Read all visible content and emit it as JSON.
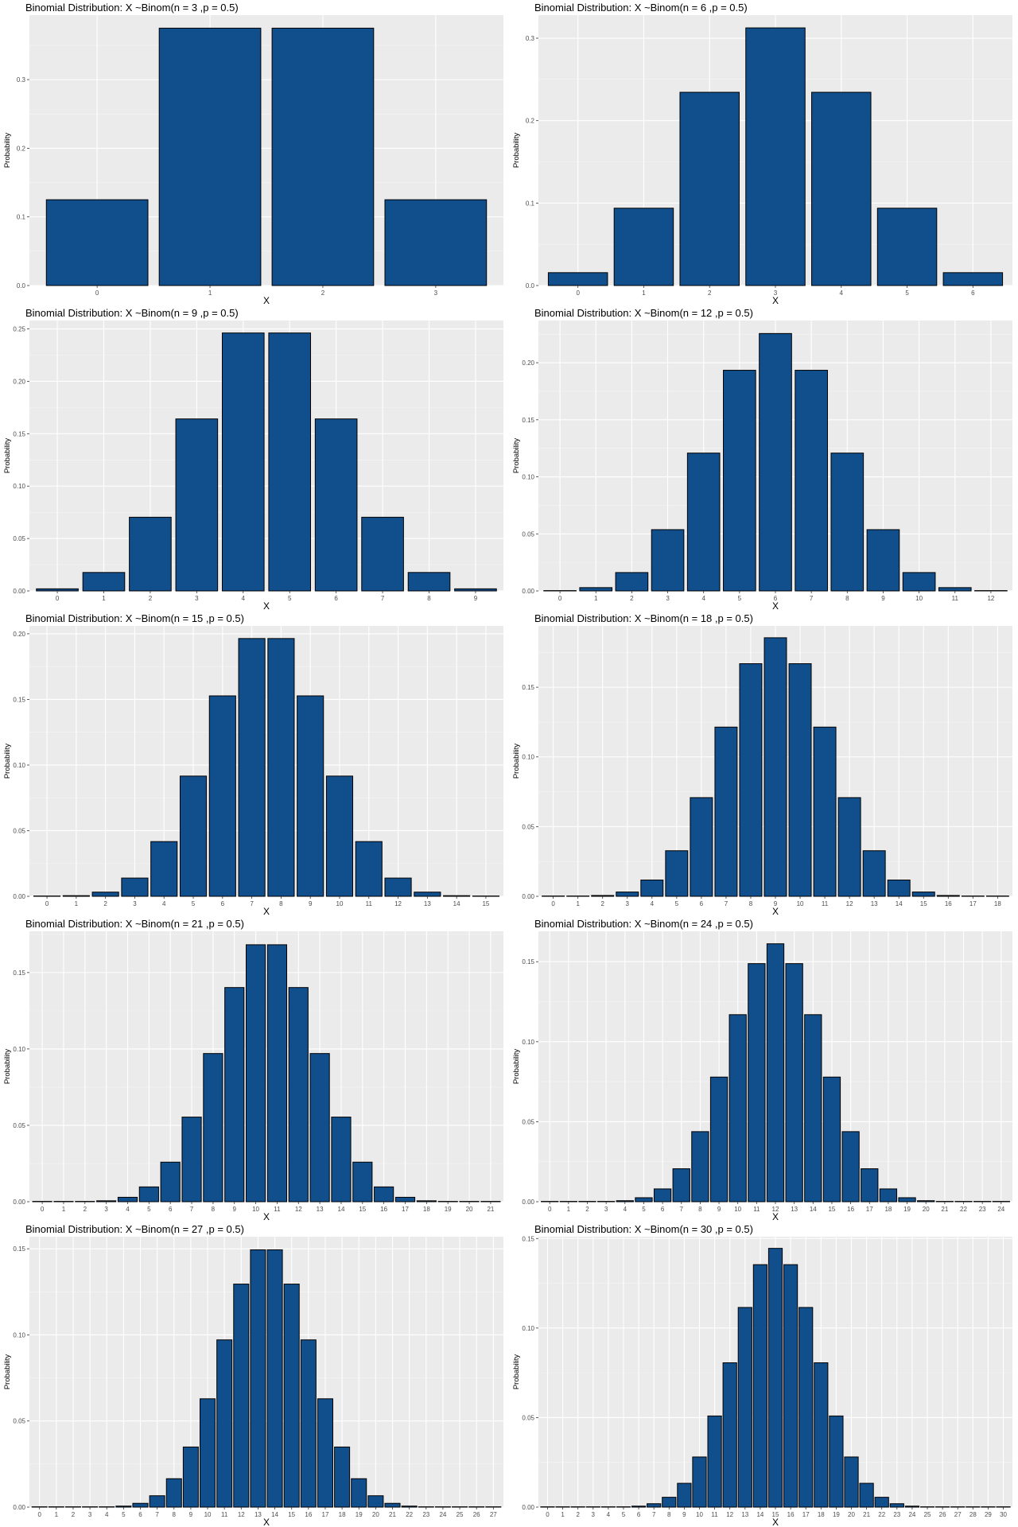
{
  "colors": {
    "panel_background": "#ebebeb",
    "grid_major": "#ffffff",
    "grid_minor": "#f5f5f5",
    "bar_fill": "#114E8C",
    "bar_outline": "#000000",
    "tick_text": "#4d4d4d"
  },
  "chart_data": [
    {
      "type": "bar",
      "title": "Binomial Distribution: X ~Binom(n = 3 ,p = 0.5)",
      "xlabel": "X",
      "ylabel": "Probability",
      "grid": true,
      "legend": "none",
      "ylim": [
        0,
        0.394
      ],
      "yticks": [
        "0.0",
        "0.1",
        "0.2",
        "0.3"
      ],
      "ytick_values": [
        0,
        0.1,
        0.2,
        0.3
      ],
      "categories": [
        "0",
        "1",
        "2",
        "3"
      ],
      "values": [
        0.125,
        0.375,
        0.375,
        0.125
      ]
    },
    {
      "type": "bar",
      "title": "Binomial Distribution: X ~Binom(n = 6 ,p = 0.5)",
      "xlabel": "X",
      "ylabel": "Probability",
      "grid": true,
      "legend": "none",
      "ylim": [
        0,
        0.328
      ],
      "yticks": [
        "0.0",
        "0.1",
        "0.2",
        "0.3"
      ],
      "ytick_values": [
        0,
        0.1,
        0.2,
        0.3
      ],
      "categories": [
        "0",
        "1",
        "2",
        "3",
        "4",
        "5",
        "6"
      ],
      "values": [
        0.0156,
        0.0938,
        0.2344,
        0.3125,
        0.2344,
        0.0938,
        0.0156
      ]
    },
    {
      "type": "bar",
      "title": "Binomial Distribution: X ~Binom(n = 9 ,p = 0.5)",
      "xlabel": "X",
      "ylabel": "Probability",
      "grid": true,
      "legend": "none",
      "ylim": [
        0,
        0.258
      ],
      "yticks": [
        "0.00",
        "0.05",
        "0.10",
        "0.15",
        "0.20",
        "0.25"
      ],
      "ytick_values": [
        0,
        0.05,
        0.1,
        0.15,
        0.2,
        0.25
      ],
      "categories": [
        "0",
        "1",
        "2",
        "3",
        "4",
        "5",
        "6",
        "7",
        "8",
        "9"
      ],
      "values": [
        0.002,
        0.0176,
        0.0703,
        0.1641,
        0.2461,
        0.2461,
        0.1641,
        0.0703,
        0.0176,
        0.002
      ]
    },
    {
      "type": "bar",
      "title": "Binomial Distribution: X ~Binom(n = 12 ,p = 0.5)",
      "xlabel": "X",
      "ylabel": "Probability",
      "grid": true,
      "legend": "none",
      "ylim": [
        0,
        0.237
      ],
      "yticks": [
        "0.00",
        "0.05",
        "0.10",
        "0.15",
        "0.20"
      ],
      "ytick_values": [
        0,
        0.05,
        0.1,
        0.15,
        0.2
      ],
      "categories": [
        "0",
        "1",
        "2",
        "3",
        "4",
        "5",
        "6",
        "7",
        "8",
        "9",
        "10",
        "11",
        "12"
      ],
      "values": [
        0.0002,
        0.0029,
        0.0161,
        0.0537,
        0.1208,
        0.1934,
        0.2256,
        0.1934,
        0.1208,
        0.0537,
        0.0161,
        0.0029,
        0.0002
      ]
    },
    {
      "type": "bar",
      "title": "Binomial Distribution: X ~Binom(n = 15 ,p = 0.5)",
      "xlabel": "X",
      "ylabel": "Probability",
      "grid": true,
      "legend": "none",
      "ylim": [
        0,
        0.206
      ],
      "yticks": [
        "0.00",
        "0.05",
        "0.10",
        "0.15",
        "0.20"
      ],
      "ytick_values": [
        0,
        0.05,
        0.1,
        0.15,
        0.2
      ],
      "categories": [
        "0",
        "1",
        "2",
        "3",
        "4",
        "5",
        "6",
        "7",
        "8",
        "9",
        "10",
        "11",
        "12",
        "13",
        "14",
        "15"
      ],
      "values": [
        3e-05,
        0.0005,
        0.0032,
        0.0139,
        0.0417,
        0.0916,
        0.1527,
        0.1964,
        0.1964,
        0.1527,
        0.0916,
        0.0417,
        0.0139,
        0.0032,
        0.0005,
        3e-05
      ]
    },
    {
      "type": "bar",
      "title": "Binomial Distribution: X ~Binom(n = 18 ,p = 0.5)",
      "xlabel": "X",
      "ylabel": "Probability",
      "grid": true,
      "legend": "none",
      "ylim": [
        0,
        0.194
      ],
      "yticks": [
        "0.00",
        "0.05",
        "0.10",
        "0.15"
      ],
      "ytick_values": [
        0,
        0.05,
        0.1,
        0.15
      ],
      "categories": [
        "0",
        "1",
        "2",
        "3",
        "4",
        "5",
        "6",
        "7",
        "8",
        "9",
        "10",
        "11",
        "12",
        "13",
        "14",
        "15",
        "16",
        "17",
        "18"
      ],
      "values": [
        4e-06,
        7e-05,
        0.0006,
        0.0031,
        0.0117,
        0.0327,
        0.0708,
        0.1214,
        0.1669,
        0.1855,
        0.1669,
        0.1214,
        0.0708,
        0.0327,
        0.0117,
        0.0031,
        0.0006,
        7e-05,
        4e-06
      ]
    },
    {
      "type": "bar",
      "title": "Binomial Distribution: X ~Binom(n = 21 ,p = 0.5)",
      "xlabel": "X",
      "ylabel": "Probability",
      "grid": true,
      "legend": "none",
      "ylim": [
        0,
        0.177
      ],
      "yticks": [
        "0.00",
        "0.05",
        "0.10",
        "0.15"
      ],
      "ytick_values": [
        0,
        0.05,
        0.1,
        0.15
      ],
      "categories": [
        "0",
        "1",
        "2",
        "3",
        "4",
        "5",
        "6",
        "7",
        "8",
        "9",
        "10",
        "11",
        "12",
        "13",
        "14",
        "15",
        "16",
        "17",
        "18",
        "19",
        "20",
        "21"
      ],
      "values": [
        5e-07,
        1e-05,
        0.0001,
        0.0006,
        0.0029,
        0.0097,
        0.0259,
        0.0554,
        0.097,
        0.1402,
        0.1682,
        0.1682,
        0.1402,
        0.097,
        0.0554,
        0.0259,
        0.0097,
        0.0029,
        0.0006,
        0.0001,
        1e-05,
        5e-07
      ]
    },
    {
      "type": "bar",
      "title": "Binomial Distribution: X ~Binom(n = 24 ,p = 0.5)",
      "xlabel": "X",
      "ylabel": "Probability",
      "grid": true,
      "legend": "none",
      "ylim": [
        0,
        0.169
      ],
      "yticks": [
        "0.00",
        "0.05",
        "0.10",
        "0.15"
      ],
      "ytick_values": [
        0,
        0.05,
        0.1,
        0.15
      ],
      "categories": [
        "0",
        "1",
        "2",
        "3",
        "4",
        "5",
        "6",
        "7",
        "8",
        "9",
        "10",
        "11",
        "12",
        "13",
        "14",
        "15",
        "16",
        "17",
        "18",
        "19",
        "20",
        "21",
        "22",
        "23",
        "24"
      ],
      "values": [
        6e-08,
        1.4e-06,
        1.6e-05,
        0.00012,
        0.00063,
        0.0025,
        0.008,
        0.0206,
        0.0438,
        0.0779,
        0.1169,
        0.1488,
        0.1612,
        0.1488,
        0.1169,
        0.0779,
        0.0438,
        0.0206,
        0.008,
        0.0025,
        0.00063,
        0.00012,
        1.6e-05,
        1.4e-06,
        6e-08
      ]
    },
    {
      "type": "bar",
      "title": "Binomial Distribution: X ~Binom(n = 27 ,p = 0.5)",
      "xlabel": "X",
      "ylabel": "Probability",
      "grid": true,
      "legend": "none",
      "ylim": [
        0,
        0.157
      ],
      "yticks": [
        "0.00",
        "0.05",
        "0.10",
        "0.15"
      ],
      "ytick_values": [
        0,
        0.05,
        0.1,
        0.15
      ],
      "categories": [
        "0",
        "1",
        "2",
        "3",
        "4",
        "5",
        "6",
        "7",
        "8",
        "9",
        "10",
        "11",
        "12",
        "13",
        "14",
        "15",
        "16",
        "17",
        "18",
        "19",
        "20",
        "21",
        "22",
        "23",
        "24",
        "25",
        "26",
        "27"
      ],
      "values": [
        7e-09,
        2e-07,
        2.6e-06,
        2.2e-05,
        0.00013,
        0.0006,
        0.0022,
        0.0066,
        0.0165,
        0.0349,
        0.0629,
        0.0971,
        0.1295,
        0.1494,
        0.1494,
        0.1295,
        0.0971,
        0.0629,
        0.0349,
        0.0165,
        0.0066,
        0.0022,
        0.0006,
        0.00013,
        2.2e-05,
        2.6e-06,
        2e-07,
        7e-09
      ]
    },
    {
      "type": "bar",
      "title": "Binomial Distribution: X ~Binom(n = 30 ,p = 0.5)",
      "xlabel": "X",
      "ylabel": "Probability",
      "grid": true,
      "legend": "none",
      "ylim": [
        0,
        0.151
      ],
      "yticks": [
        "0.00",
        "0.05",
        "0.10",
        "0.15"
      ],
      "ytick_values": [
        0,
        0.05,
        0.1,
        0.15
      ],
      "categories": [
        "0",
        "1",
        "2",
        "3",
        "4",
        "5",
        "6",
        "7",
        "8",
        "9",
        "10",
        "11",
        "12",
        "13",
        "14",
        "15",
        "16",
        "17",
        "18",
        "19",
        "20",
        "21",
        "22",
        "23",
        "24",
        "25",
        "26",
        "27",
        "28",
        "29",
        "30"
      ],
      "values": [
        1e-09,
        3e-08,
        4e-07,
        3.8e-06,
        2.5e-05,
        0.00013,
        0.00055,
        0.0019,
        0.0055,
        0.0133,
        0.028,
        0.0509,
        0.0806,
        0.1115,
        0.1354,
        0.1445,
        0.1354,
        0.1115,
        0.0806,
        0.0509,
        0.028,
        0.0133,
        0.0055,
        0.0019,
        0.00055,
        0.00013,
        2.5e-05,
        3.8e-06,
        4e-07,
        3e-08,
        1e-09
      ]
    }
  ]
}
